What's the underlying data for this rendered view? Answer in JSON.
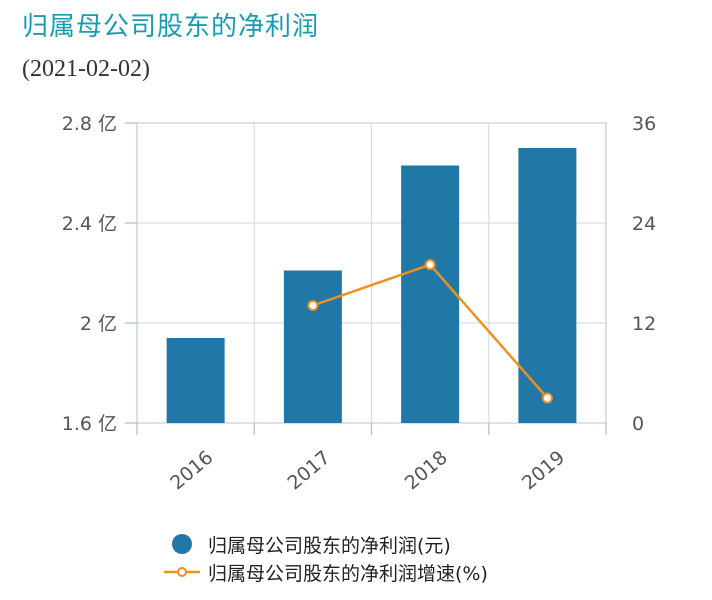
{
  "title": "归属母公司股东的净利润",
  "subtitle": "(2021-02-02)",
  "chart_data": {
    "type": "bar",
    "categories": [
      "2016",
      "2017",
      "2018",
      "2019"
    ],
    "series": [
      {
        "name": "归属母公司股东的净利润(元)",
        "type": "bar",
        "axis": "left",
        "values": [
          194000000,
          221000000,
          263000000,
          270000000
        ],
        "color": "#2178a6"
      },
      {
        "name": "归属母公司股东的净利润增速(%)",
        "type": "line",
        "axis": "right",
        "values": [
          null,
          14.1,
          19.0,
          3.0
        ],
        "color": "#f0901e"
      }
    ],
    "left_axis": {
      "ylim": [
        160000000,
        280000000
      ],
      "ticks": [
        160000000,
        200000000,
        240000000,
        280000000
      ],
      "tick_labels": [
        "1.6 亿",
        "2 亿",
        "2.4 亿",
        "2.8 亿"
      ]
    },
    "right_axis": {
      "ylim": [
        0,
        36
      ],
      "ticks": [
        0,
        12,
        24,
        36
      ],
      "tick_labels": [
        "0",
        "12",
        "24",
        "36"
      ]
    },
    "grid": true,
    "legend_position": "bottom"
  },
  "legend": {
    "bar_label": "归属母公司股东的净利润(元)",
    "line_label": "归属母公司股东的净利润增速(%)"
  }
}
